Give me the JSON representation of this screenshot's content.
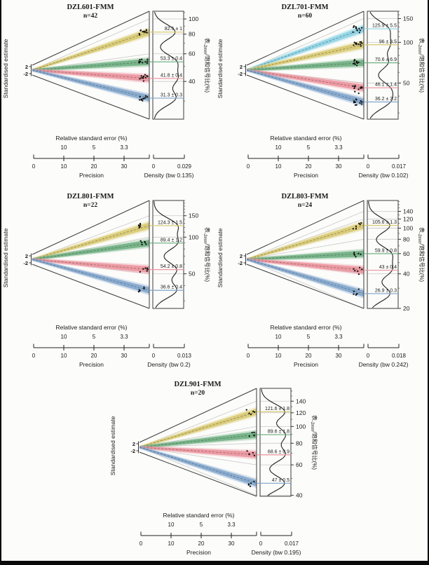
{
  "figure": {
    "description_visible_text_only": true,
    "shared": {
      "left_axis_label": "Standardised estimate",
      "right_axis_label_prefix": "表",
      "right_axis_label_subscript": "-2mm",
      "right_axis_label_suffix": "/饱和信号比(%)",
      "precision_title": "Relative standard error (%)",
      "precision_label": "Precision"
    }
  },
  "chart_data": [
    {
      "type": "funnel-precision",
      "title": "DZL601-FMM",
      "n_label": "n=42",
      "n": 42,
      "left_axis_label": "Standardised estimate",
      "left_ticks": [
        "2",
        "-2"
      ],
      "right_axis_label": {
        "prefix": "表",
        "subscript": "-2mm",
        "suffix": "/饱和信号比(%)"
      },
      "right_ticks": [
        100,
        80,
        60,
        40
      ],
      "value_domain": [
        23,
        112
      ],
      "series": [
        {
          "name": "yellow",
          "band_color": "#d9ca74",
          "label_color": "#b9a53e",
          "mean": 82.5,
          "label": "82.5 ± 1"
        },
        {
          "name": "green",
          "band_color": "#72b183",
          "label_color": "#379a55",
          "mean": 53.3,
          "label": "53.3 ± 0.4"
        },
        {
          "name": "red",
          "band_color": "#ec96a0",
          "label_color": "#e4606a",
          "mean": 41.8,
          "label": "41.8 ± 0.4"
        },
        {
          "name": "blue",
          "band_color": "#83a7cd",
          "label_color": "#4b7fb7",
          "mean": 31.3,
          "label": "31.3 ± 0.3"
        }
      ],
      "precision_axis": {
        "title": "Relative standard error (%)",
        "rse_tick_labels": [
          "10",
          "5",
          "3.3"
        ],
        "tick_labels": [
          "0",
          "10",
          "20",
          "30"
        ],
        "label": "Precision"
      },
      "density_axis": {
        "min_label": "0",
        "max_label": "0.029",
        "label": "Density (bw 0.135)"
      }
    },
    {
      "type": "funnel-precision",
      "title": "DZL701-FMM",
      "n_label": "n=60",
      "n": 60,
      "left_axis_label": "Standardised estimate",
      "left_ticks": [
        "2",
        "-2"
      ],
      "right_axis_label": {
        "prefix": "表",
        "subscript": "-2mm",
        "suffix": "/饱和信号比(%)"
      },
      "right_ticks": [
        150,
        100,
        50
      ],
      "value_domain": [
        27,
        170
      ],
      "series": [
        {
          "name": "cyan",
          "band_color": "#8fd4e6",
          "label_color": "#3fbcd9",
          "mean": 125.9,
          "label": "125.9 ± 5.5"
        },
        {
          "name": "yellow",
          "band_color": "#d9ca74",
          "label_color": "#b9a53e",
          "mean": 96,
          "label": "96 ± 3.5"
        },
        {
          "name": "green",
          "band_color": "#72b183",
          "label_color": "#379a55",
          "mean": 70.6,
          "label": "70.6 ± 6.9"
        },
        {
          "name": "red",
          "band_color": "#ec96a0",
          "label_color": "#e4606a",
          "mean": 46.1,
          "label": "46.1 ± 1.4"
        },
        {
          "name": "blue",
          "band_color": "#83a7cd",
          "label_color": "#4b7fb7",
          "mean": 36.2,
          "label": "36.2 ± 3.2"
        }
      ],
      "precision_axis": {
        "title": "Relative standard error (%)",
        "rse_tick_labels": [
          "10",
          "5",
          "3.3"
        ],
        "tick_labels": [
          "0",
          "10",
          "20",
          "30"
        ],
        "label": "Precision"
      },
      "density_axis": {
        "min_label": "0",
        "max_label": "0.017",
        "label": "Density (bw 0.102)"
      }
    },
    {
      "type": "funnel-precision",
      "title": "DZL801-FMM",
      "n_label": "n=22",
      "n": 22,
      "left_axis_label": "Standardised estimate",
      "left_ticks": [
        "2",
        "-2"
      ],
      "right_axis_label": {
        "prefix": "表",
        "subscript": "-2mm",
        "suffix": "/饱和信号比(%)"
      },
      "right_ticks": [
        150,
        100,
        50
      ],
      "value_domain": [
        26,
        200
      ],
      "series": [
        {
          "name": "yellow",
          "band_color": "#d9ca74",
          "label_color": "#b9a53e",
          "mean": 124.3,
          "label": "124.3 ± 1.5"
        },
        {
          "name": "green",
          "band_color": "#72b183",
          "label_color": "#379a55",
          "mean": 89.4,
          "label": "89.4 ± 1.2"
        },
        {
          "name": "red",
          "band_color": "#ec96a0",
          "label_color": "#e4606a",
          "mean": 54.2,
          "label": "54.2 ± 0.8"
        },
        {
          "name": "blue",
          "band_color": "#83a7cd",
          "label_color": "#4b7fb7",
          "mean": 36.6,
          "label": "36.6 ± 0.4"
        }
      ],
      "precision_axis": {
        "title": "Relative standard error (%)",
        "rse_tick_labels": [
          "10",
          "5",
          "3.3"
        ],
        "tick_labels": [
          "0",
          "10",
          "20",
          "30"
        ],
        "label": "Precision"
      },
      "density_axis": {
        "min_label": "0",
        "max_label": "0.013",
        "label": "Density (bw 0.2)"
      }
    },
    {
      "type": "funnel-precision",
      "title": "DZL803-FMM",
      "n_label": "n=24",
      "n": 24,
      "left_axis_label": "Standardised estimate",
      "left_ticks": [
        "2",
        "-2"
      ],
      "right_axis_label": {
        "prefix": "表",
        "subscript": "-2mm",
        "suffix": "/饱和信号比(%)"
      },
      "right_ticks": [
        140,
        120,
        100,
        80,
        60,
        40,
        20
      ],
      "value_domain": [
        20,
        174
      ],
      "series": [
        {
          "name": "yellow",
          "band_color": "#d9ca74",
          "label_color": "#b9a53e",
          "mean": 105.6,
          "label": "105.6 ± 1.3"
        },
        {
          "name": "green",
          "band_color": "#72b183",
          "label_color": "#379a55",
          "mean": 59.9,
          "label": "59.9 ± 0.8"
        },
        {
          "name": "red",
          "band_color": "#ec96a0",
          "label_color": "#e4606a",
          "mean": 43,
          "label": "43 ± 0.4"
        },
        {
          "name": "blue",
          "band_color": "#83a7cd",
          "label_color": "#4b7fb7",
          "mean": 26.9,
          "label": "26.9 ± 0.3"
        }
      ],
      "precision_axis": {
        "title": "Relative standard error (%)",
        "rse_tick_labels": [
          "10",
          "5",
          "3.3"
        ],
        "tick_labels": [
          "0",
          "10",
          "20",
          "30"
        ],
        "label": "Precision"
      },
      "density_axis": {
        "min_label": "0",
        "max_label": "0.018",
        "label": "Density (bw 0.242)"
      }
    },
    {
      "type": "funnel-precision",
      "title": "DZL901-FMM",
      "n_label": "n=20",
      "n": 20,
      "left_axis_label": "Standardised estimate",
      "left_ticks": [
        "2",
        "-2"
      ],
      "right_axis_label": {
        "prefix": "表",
        "subscript": "-2mm",
        "suffix": "/饱和信号比(%)"
      },
      "right_ticks": [
        140,
        120,
        100,
        80,
        60,
        40
      ],
      "value_domain": [
        39.5,
        166
      ],
      "series": [
        {
          "name": "yellow",
          "band_color": "#d9ca74",
          "label_color": "#b9a53e",
          "mean": 121.6,
          "label": "121.6 ± 1.8"
        },
        {
          "name": "green",
          "band_color": "#72b183",
          "label_color": "#379a55",
          "mean": 89.6,
          "label": "89.6 ± 1.8"
        },
        {
          "name": "red",
          "band_color": "#ec96a0",
          "label_color": "#e4606a",
          "mean": 68.6,
          "label": "68.6 ± 0.9"
        },
        {
          "name": "blue",
          "band_color": "#83a7cd",
          "label_color": "#4b7fb7",
          "mean": 47,
          "label": "47 ± 0.5"
        }
      ],
      "precision_axis": {
        "title": "Relative standard error (%)",
        "rse_tick_labels": [
          "10",
          "5",
          "3.3"
        ],
        "tick_labels": [
          "0",
          "10",
          "20",
          "30"
        ],
        "label": "Precision"
      },
      "density_axis": {
        "min_label": "0",
        "max_label": "0.017",
        "label": "Density (bw 0.195)"
      }
    }
  ]
}
